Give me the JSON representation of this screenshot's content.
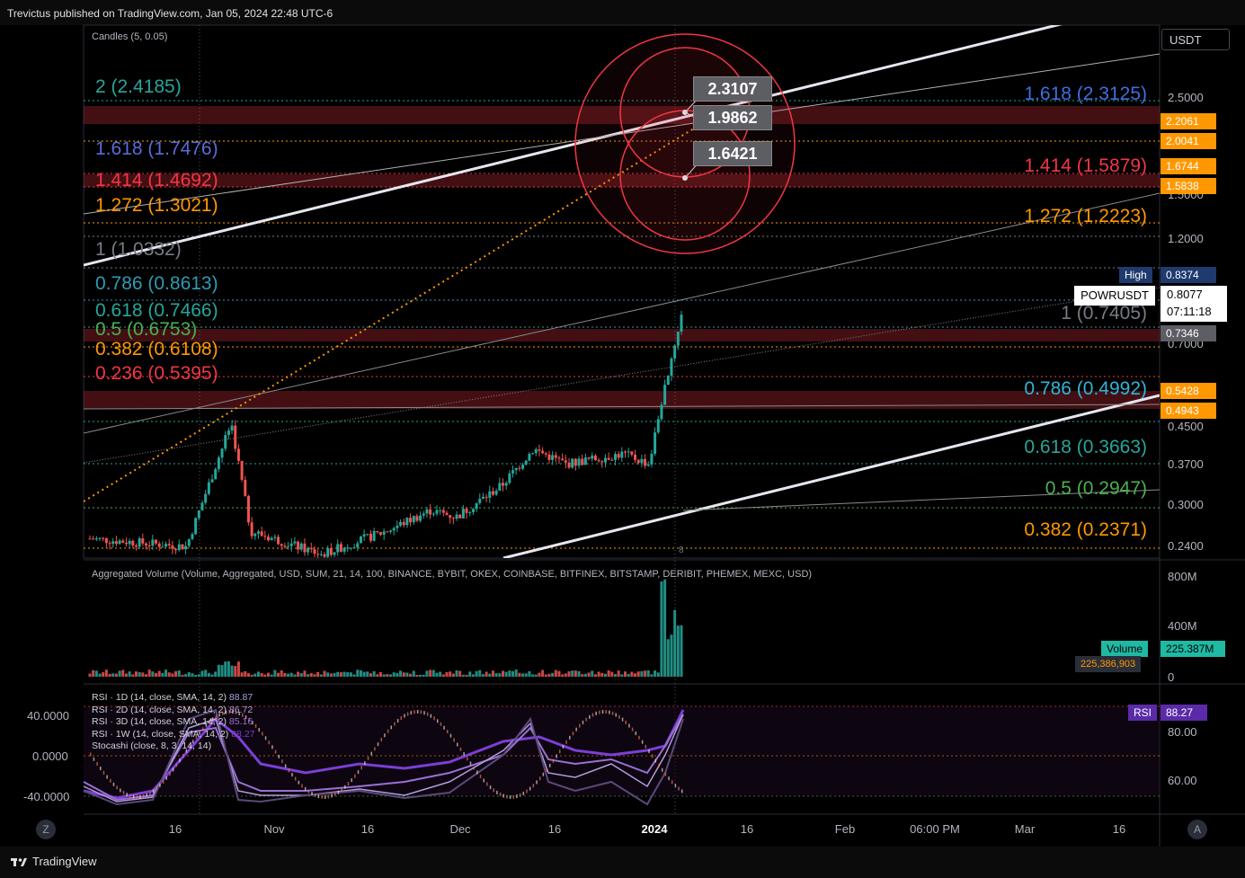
{
  "header": {
    "publish_line": "Trevictus published on TradingView.com, Jan 05, 2024 22:48 UTC-6"
  },
  "footer": {
    "brand": "TradingView",
    "left_button": "Z",
    "right_button": "A"
  },
  "price_pane": {
    "candles_label": "Candles (5, 0.05)",
    "currency_button": "USDT",
    "y_ticks": [
      "2.5000",
      "1.5000",
      "1.2000",
      "0.7000",
      "0.4500",
      "0.3700",
      "0.3000",
      "0.2400"
    ],
    "left_fibs": [
      {
        "label": "2 (2.4185)",
        "color": "#26a69a"
      },
      {
        "label": "1.618 (1.7476)",
        "color": "#5b6bd6"
      },
      {
        "label": "1.414 (1.4692)",
        "color": "#f23645"
      },
      {
        "label": "1.272 (1.3021)",
        "color": "#ff9800"
      },
      {
        "label": "1 (1.0332)",
        "color": "#787b86"
      },
      {
        "label": "0.786 (0.8613)",
        "color": "#2f9bb5"
      },
      {
        "label": "0.618 (0.7466)",
        "color": "#26a69a"
      },
      {
        "label": "0.5 (0.6753)",
        "color": "#4caf50"
      },
      {
        "label": "0.382 (0.6108)",
        "color": "#ff9800"
      },
      {
        "label": "0.236 (0.5395)",
        "color": "#f23645"
      }
    ],
    "right_fibs": [
      {
        "label": "1.618 (2.3125)",
        "color": "#3d6fe0"
      },
      {
        "label": "1.414 (1.5879)",
        "color": "#f23645"
      },
      {
        "label": "1.272 (1.2223)",
        "color": "#ff9800"
      },
      {
        "label": "1 (0.7405)",
        "color": "#787b86"
      },
      {
        "label": "0.786 (0.4992)",
        "color": "#2fb5d6"
      },
      {
        "label": "0.618 (0.3663)",
        "color": "#26a69a"
      },
      {
        "label": "0.5 (0.2947)",
        "color": "#4caf50"
      },
      {
        "label": "0.382 (0.2371)",
        "color": "#ff9800"
      }
    ],
    "target_labels": [
      "2.3107",
      "1.9862",
      "1.6421"
    ],
    "price_pills": {
      "p1": "2.2061",
      "p2": "2.0041",
      "p3": "1.6744",
      "p4": "1.5838",
      "high_label": "High",
      "high_value": "0.8374",
      "symbol": "POWRUSDT",
      "last_price": "0.8077",
      "countdown": "07:11:18",
      "p5": "0.7346",
      "p6": "0.5428",
      "p7": "0.4943"
    },
    "candle_marker": "8"
  },
  "volume_pane": {
    "title": "Aggregated Volume (Volume, Aggregated, USD, SUM, 21, 14, 100, BINANCE, BYBIT, OKEX, COINBASE, BITFINEX, BITSTAMP, DERIBIT, PHEMEX, MEXC, USD)",
    "y_ticks": [
      "800M",
      "400M",
      "0"
    ],
    "volume_label": "Volume",
    "volume_value": "225.387M",
    "volume_raw": "225,386,903"
  },
  "rsi_pane": {
    "legend": [
      {
        "text": "RSI · 1D (14, close, SMA, 14, 2)",
        "value": "88.87",
        "color": "#b39ddb"
      },
      {
        "text": "RSI · 2D (14, close, SMA, 14, 2)",
        "value": "86.72",
        "color": "#b39ddb"
      },
      {
        "text": "RSI · 3D (14, close, SMA, 14, 2)",
        "value": "85.16",
        "color": "#9c6fd6"
      },
      {
        "text": "RSI · 1W (14, close, SMA, 14, 2)",
        "value": "88.27",
        "color": "#7b3fd6"
      },
      {
        "text": "Stocashi (close, 8, 3, 14, 14)",
        "value": "",
        "color": "#9598a1"
      }
    ],
    "left_ticks": [
      "40.0000",
      "0.0000",
      "-40.0000"
    ],
    "right_ticks": [
      "80.00",
      "60.00"
    ],
    "rsi_label": "RSI",
    "rsi_value": "88.27"
  },
  "x_axis": {
    "labels": [
      "16",
      "Nov",
      "16",
      "Dec",
      "16",
      "2024",
      "16",
      "Feb",
      "06:00 PM",
      "Mar",
      "16"
    ]
  },
  "chart_data": {
    "type": "candlestick",
    "symbol": "POWRUSDT",
    "y_scale": "log",
    "ylim": [
      0.22,
      3.0
    ],
    "series_close_approx": [
      {
        "date": "2023-10-05",
        "price": 0.25
      },
      {
        "date": "2023-10-20",
        "price": 0.24
      },
      {
        "date": "2023-10-27",
        "price": 0.46
      },
      {
        "date": "2023-10-30",
        "price": 0.26
      },
      {
        "date": "2023-11-10",
        "price": 0.23
      },
      {
        "date": "2023-11-20",
        "price": 0.26
      },
      {
        "date": "2023-11-27",
        "price": 0.29
      },
      {
        "date": "2023-12-01",
        "price": 0.28
      },
      {
        "date": "2023-12-08",
        "price": 0.33
      },
      {
        "date": "2023-12-13",
        "price": 0.4
      },
      {
        "date": "2023-12-18",
        "price": 0.37
      },
      {
        "date": "2023-12-27",
        "price": 0.39
      },
      {
        "date": "2023-12-31",
        "price": 0.37
      },
      {
        "date": "2024-01-02",
        "price": 0.52
      },
      {
        "date": "2024-01-05",
        "price": 0.8077
      }
    ],
    "high": 0.8374,
    "last": 0.8077
  }
}
